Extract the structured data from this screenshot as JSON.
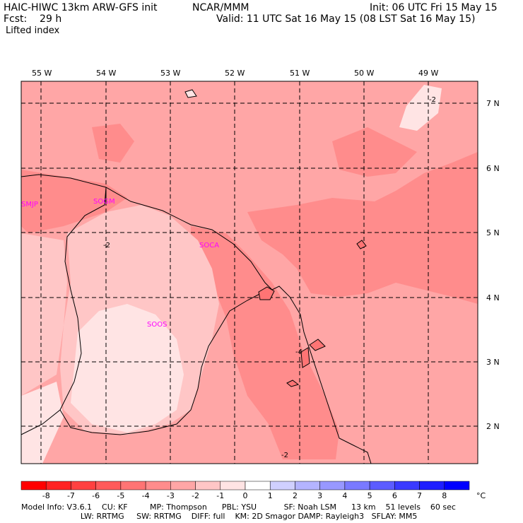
{
  "header": {
    "model": "HAIC-HIWC 13km ARW-GFS init",
    "org": "NCAR/MMM",
    "init": "Init: 06 UTC Fri 15 May 15",
    "fcst": "Fcst:    29 h",
    "valid": "Valid: 11 UTC Sat 16 May 15 (08 LST Sat 16 May 15)",
    "field": "Lifted index"
  },
  "axes": {
    "lon_labels": [
      "55 W",
      "54 W",
      "53 W",
      "52 W",
      "51 W",
      "50 W",
      "49 W"
    ],
    "lat_labels": [
      "7 N",
      "6 N",
      "5 N",
      "4 N",
      "3 N",
      "2 N"
    ]
  },
  "stations": [
    "SMJP",
    "SOGM",
    "SOCA",
    "SOOS"
  ],
  "contour_labels": [
    "-2",
    "-4",
    "-2",
    "-2"
  ],
  "colorbar": {
    "labels": [
      "-8",
      "-7",
      "-6",
      "-5",
      "-4",
      "-3",
      "-2",
      "-1",
      "0",
      "1",
      "2",
      "3",
      "4",
      "5",
      "6",
      "7",
      "8"
    ],
    "unit": "°C",
    "colors": [
      "#ff0000",
      "#ff2222",
      "#ff4040",
      "#ff5a5a",
      "#ff7474",
      "#ff8c8c",
      "#ffa6a6",
      "#ffc6c6",
      "#ffe4e4",
      "#ffffff",
      "#d0d0ff",
      "#b4b4ff",
      "#9898ff",
      "#7a7aff",
      "#5c5cff",
      "#3a3aff",
      "#1e1eff",
      "#0000ff"
    ]
  },
  "footer": {
    "line1": "Model Info: V3.6.1    CU: KF         MP: Thompson      PBL: YSU           SF: Noah LSM      13 km    51 levels    60 sec",
    "line2": "                        LW: RRTMG     SW: RRTMG    DIFF: full    KM: 2D Smagor DAMP: Rayleigh3   SFLAY: MM5"
  }
}
